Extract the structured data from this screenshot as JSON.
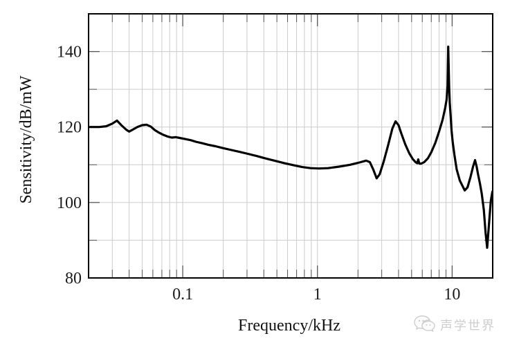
{
  "chart_data": {
    "type": "line",
    "title": "",
    "xlabel": "Frequency/kHz",
    "ylabel": "Sensitivity/dB/mW",
    "x_scale": "log",
    "xlim": [
      0.02,
      20
    ],
    "ylim": [
      80,
      150
    ],
    "grid": true,
    "legend": "none",
    "x_major_ticks": [
      0.1,
      1,
      10
    ],
    "x_major_tick_labels": [
      "0.1",
      "1",
      "10"
    ],
    "x_minor_ticks": [
      0.03,
      0.04,
      0.05,
      0.06,
      0.07,
      0.08,
      0.09,
      0.2,
      0.3,
      0.4,
      0.5,
      0.6,
      0.7,
      0.8,
      0.9,
      2,
      3,
      4,
      5,
      6,
      7,
      8,
      9
    ],
    "y_major_ticks": [
      80,
      100,
      120,
      140
    ],
    "y_major_tick_labels": [
      "80",
      "100",
      "120",
      "140"
    ],
    "y_minor_ticks": [
      90,
      110,
      130
    ],
    "series": [
      {
        "name": "sensitivity-response",
        "color": "#000000",
        "points": [
          [
            0.0205,
            120.0
          ],
          [
            0.024,
            120.0
          ],
          [
            0.027,
            120.2
          ],
          [
            0.03,
            120.9
          ],
          [
            0.0325,
            121.7
          ],
          [
            0.035,
            120.5
          ],
          [
            0.038,
            119.3
          ],
          [
            0.04,
            118.8
          ],
          [
            0.043,
            119.4
          ],
          [
            0.046,
            120.0
          ],
          [
            0.05,
            120.5
          ],
          [
            0.054,
            120.6
          ],
          [
            0.058,
            120.1
          ],
          [
            0.062,
            119.2
          ],
          [
            0.066,
            118.6
          ],
          [
            0.071,
            118.0
          ],
          [
            0.077,
            117.5
          ],
          [
            0.083,
            117.2
          ],
          [
            0.089,
            117.3
          ],
          [
            0.095,
            117.1
          ],
          [
            0.105,
            116.8
          ],
          [
            0.115,
            116.5
          ],
          [
            0.125,
            116.1
          ],
          [
            0.14,
            115.7
          ],
          [
            0.155,
            115.3
          ],
          [
            0.175,
            114.9
          ],
          [
            0.2,
            114.4
          ],
          [
            0.23,
            113.9
          ],
          [
            0.265,
            113.4
          ],
          [
            0.305,
            112.9
          ],
          [
            0.355,
            112.3
          ],
          [
            0.42,
            111.6
          ],
          [
            0.49,
            111.0
          ],
          [
            0.57,
            110.4
          ],
          [
            0.66,
            109.9
          ],
          [
            0.77,
            109.4
          ],
          [
            0.89,
            109.1
          ],
          [
            1.03,
            109.0
          ],
          [
            1.2,
            109.1
          ],
          [
            1.45,
            109.5
          ],
          [
            1.75,
            110.0
          ],
          [
            2.05,
            110.6
          ],
          [
            2.3,
            111.1
          ],
          [
            2.45,
            110.7
          ],
          [
            2.6,
            108.7
          ],
          [
            2.75,
            106.4
          ],
          [
            2.9,
            107.5
          ],
          [
            3.1,
            110.8
          ],
          [
            3.35,
            115.2
          ],
          [
            3.6,
            119.6
          ],
          [
            3.8,
            121.5
          ],
          [
            4.0,
            120.5
          ],
          [
            4.2,
            118.2
          ],
          [
            4.5,
            115.3
          ],
          [
            4.8,
            113.1
          ],
          [
            5.1,
            111.5
          ],
          [
            5.35,
            110.7
          ],
          [
            5.5,
            110.4
          ],
          [
            5.6,
            111.4
          ],
          [
            5.7,
            110.3
          ],
          [
            5.9,
            110.3
          ],
          [
            6.2,
            110.7
          ],
          [
            6.6,
            111.7
          ],
          [
            7.0,
            113.3
          ],
          [
            7.5,
            115.8
          ],
          [
            8.0,
            118.8
          ],
          [
            8.5,
            122.0
          ],
          [
            8.9,
            125.2
          ],
          [
            9.1,
            127.3
          ],
          [
            9.25,
            131.0
          ],
          [
            9.35,
            141.3
          ],
          [
            9.5,
            130.5
          ],
          [
            9.6,
            126.5
          ],
          [
            9.75,
            122.8
          ],
          [
            9.9,
            119.2
          ],
          [
            10.1,
            116.0
          ],
          [
            10.4,
            112.6
          ],
          [
            10.8,
            108.8
          ],
          [
            11.4,
            105.8
          ],
          [
            12.4,
            103.2
          ],
          [
            13.0,
            104.0
          ],
          [
            13.7,
            106.8
          ],
          [
            14.3,
            109.5
          ],
          [
            14.8,
            111.2
          ],
          [
            15.2,
            109.5
          ],
          [
            15.6,
            107.3
          ],
          [
            16.1,
            104.9
          ],
          [
            16.6,
            102.3
          ],
          [
            17.2,
            98.0
          ],
          [
            17.7,
            92.0
          ],
          [
            18.2,
            88.0
          ],
          [
            18.6,
            92.5
          ],
          [
            19.0,
            96.8
          ],
          [
            19.4,
            100.6
          ],
          [
            19.9,
            102.9
          ]
        ]
      }
    ]
  },
  "colors": {
    "curve": "#000000",
    "border": "#000000",
    "grid": "#cccccc",
    "tick": "#555555",
    "tick_label": "#1a1a1a",
    "watermark": "#cdcdcd"
  },
  "watermark": {
    "text": "声学世界",
    "icon": "chat-bubbles-icon"
  }
}
